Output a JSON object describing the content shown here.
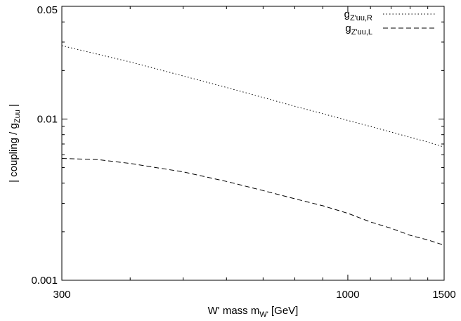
{
  "chart_data": {
    "type": "line",
    "x_scale": "log",
    "y_scale": "log",
    "xlim": [
      300,
      1500
    ],
    "ylim": [
      0.001,
      0.05
    ],
    "x_ticks": [
      300,
      1000,
      1500
    ],
    "x_tick_labels": [
      "300",
      "1000",
      "1500"
    ],
    "y_ticks": [
      0.001,
      0.01,
      0.05
    ],
    "y_tick_labels": [
      "0.001",
      "0.01",
      "0.05"
    ],
    "xlabel": {
      "main": "W' mass m",
      "sub": "W'",
      "tail": " [GeV]"
    },
    "ylabel": {
      "main": "| coupling / g",
      "sub": "Zuu",
      "tail": " |"
    },
    "grid": false,
    "legend_position": "top-right",
    "series": [
      {
        "name": {
          "main": "g",
          "sub": "Z'uu,R"
        },
        "line_style": "dotted",
        "x": [
          300,
          400,
          500,
          600,
          700,
          800,
          900,
          1000,
          1100,
          1200,
          1300,
          1400,
          1500
        ],
        "y": [
          0.0285,
          0.0226,
          0.0185,
          0.0157,
          0.0136,
          0.012,
          0.0108,
          0.0098,
          0.009,
          0.0083,
          0.0077,
          0.0072,
          0.0067
        ]
      },
      {
        "name": {
          "main": "g",
          "sub": "Z'uu,L"
        },
        "line_style": "dashed",
        "x": [
          300,
          350,
          400,
          500,
          600,
          700,
          800,
          900,
          1000,
          1100,
          1200,
          1300,
          1400,
          1500
        ],
        "y": [
          0.0057,
          0.0056,
          0.0053,
          0.0047,
          0.0041,
          0.0036,
          0.0032,
          0.0029,
          0.0026,
          0.0023,
          0.0021,
          0.0019,
          0.00178,
          0.00165
        ]
      }
    ]
  }
}
